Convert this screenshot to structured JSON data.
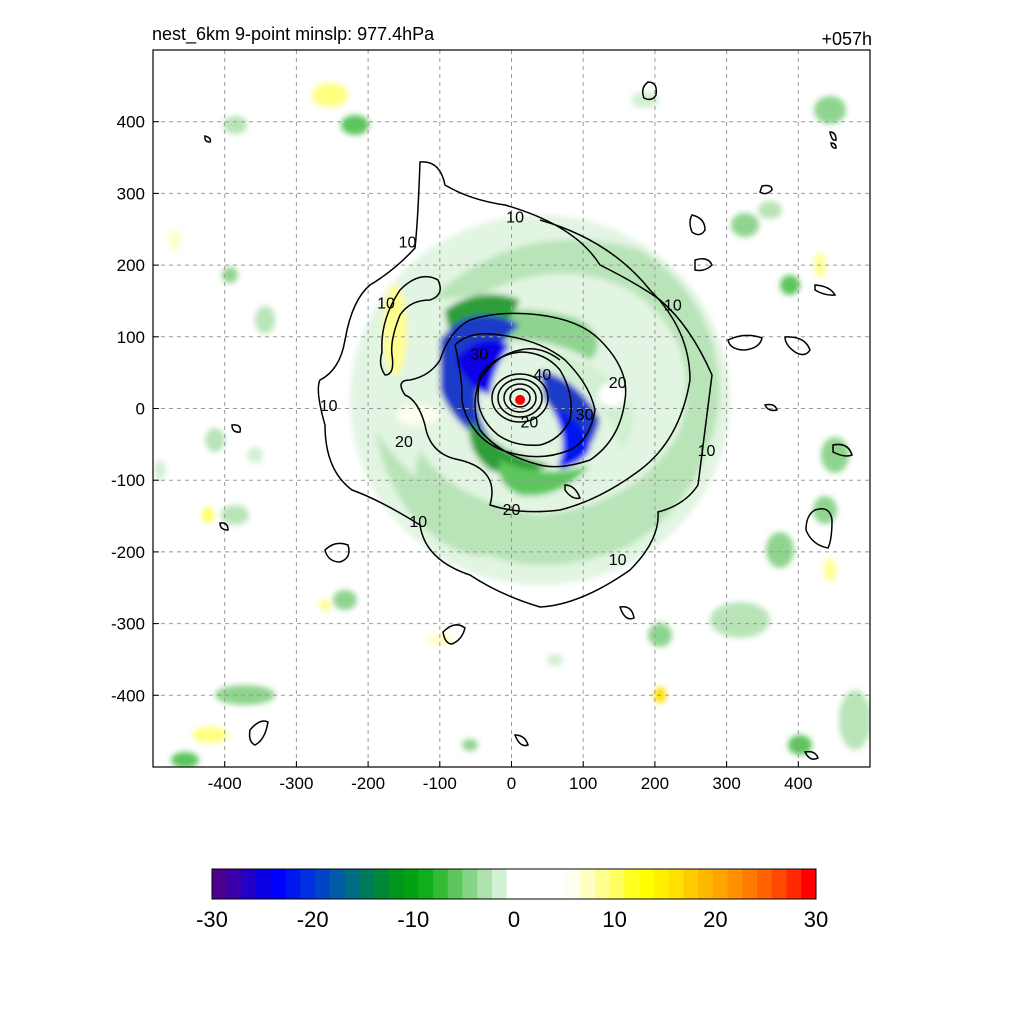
{
  "header": {
    "title": "nest_6km  9-point minslp: 977.4hPa",
    "forecast_hour": "+057h"
  },
  "chart_data": {
    "type": "heatmap",
    "x": {
      "ticks": [
        -400,
        -300,
        -200,
        -100,
        0,
        100,
        200,
        300,
        400
      ],
      "range": [
        -500,
        500
      ]
    },
    "y": {
      "ticks": [
        400,
        300,
        200,
        100,
        0,
        -100,
        -200,
        -300,
        -400
      ],
      "range": [
        -500,
        500
      ]
    },
    "grid": true,
    "contour_labels": [
      {
        "text": "10",
        "x": 5,
        "y": 268
      },
      {
        "text": "10",
        "x": -145,
        "y": 233
      },
      {
        "text": "10",
        "x": -175,
        "y": 148
      },
      {
        "text": "10",
        "x": 225,
        "y": 145
      },
      {
        "text": "10",
        "x": -255,
        "y": 5
      },
      {
        "text": "10",
        "x": 272,
        "y": -58
      },
      {
        "text": "10",
        "x": -130,
        "y": -157
      },
      {
        "text": "10",
        "x": 148,
        "y": -210
      },
      {
        "text": "20",
        "x": -150,
        "y": -45
      },
      {
        "text": "20",
        "x": 0,
        "y": -140
      },
      {
        "text": "20",
        "x": 148,
        "y": 37
      },
      {
        "text": "20",
        "x": 25,
        "y": -18
      },
      {
        "text": "30",
        "x": -45,
        "y": 77
      },
      {
        "text": "30",
        "x": 102,
        "y": -8
      },
      {
        "text": "40",
        "x": 43,
        "y": 48
      }
    ],
    "storm_center": {
      "x": 12,
      "y": 12
    },
    "colorbar": {
      "ticks": [
        "-30",
        "-20",
        "-10",
        "0",
        "10",
        "20",
        "30"
      ],
      "range": [
        -30,
        30
      ],
      "colors": [
        "#4b0091",
        "#3a00a8",
        "#2200c8",
        "#0a00e6",
        "#0000ff",
        "#0018f0",
        "#0030e0",
        "#0044c8",
        "#005aa8",
        "#006c84",
        "#007a5c",
        "#008838",
        "#00961c",
        "#00a214",
        "#10ae18",
        "#34ba34",
        "#5cc65c",
        "#86d486",
        "#aee2ae",
        "#d2f0d2",
        "#ffffff",
        "#ffffff",
        "#ffffff",
        "#ffffff",
        "#fffff0",
        "#ffffc4",
        "#ffff90",
        "#ffff60",
        "#ffff20",
        "#ffff00",
        "#fff000",
        "#ffe000",
        "#ffcc00",
        "#ffb800",
        "#ffa400",
        "#ff9000",
        "#ff7c00",
        "#ff6400",
        "#ff4800",
        "#ff2a00",
        "#ff0000"
      ]
    }
  }
}
